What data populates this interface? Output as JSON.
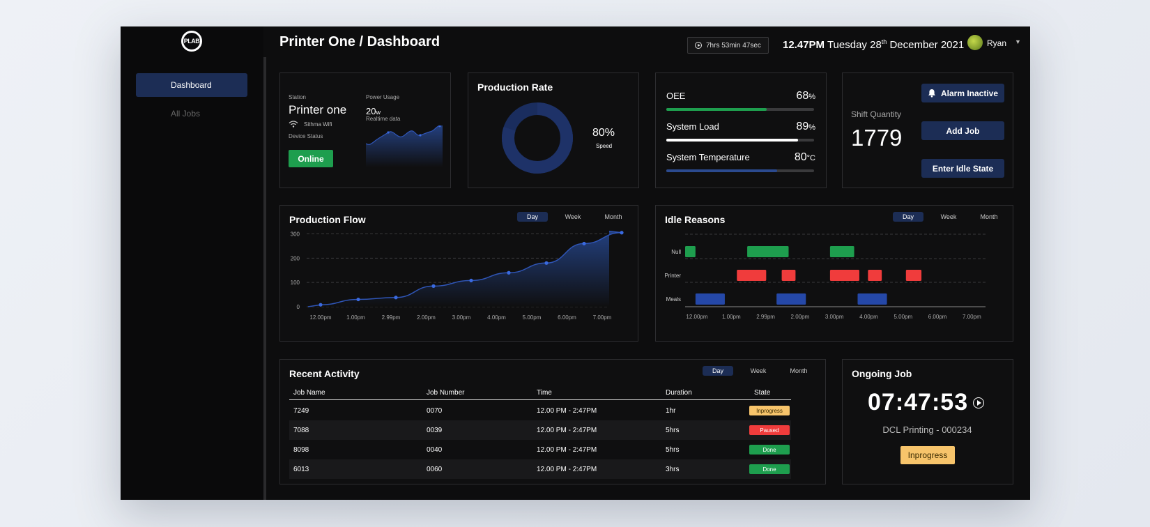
{
  "app": {
    "logo_text": "PLAB",
    "page_title": "Printer One / Dashboard",
    "timer": "7hrs 53min 47sec",
    "time": "12.47PM",
    "date": "Tuesday 28th December 2021",
    "username": "Ryan"
  },
  "sidebar": {
    "items": [
      {
        "label": "Dashboard",
        "icon": "grid-icon"
      },
      {
        "label": "All Jobs",
        "icon": "list-icon"
      }
    ]
  },
  "station": {
    "station_label": "Station",
    "station_name": "Printer one",
    "wifi": "Sithma Wifi",
    "device_status_label": "Device Status",
    "status": "Online",
    "power_label": "Power Usage",
    "power_value": "20",
    "power_unit": "w",
    "realtime": "Realtime data"
  },
  "production_rate": {
    "title": "Production Rate",
    "value": "80%",
    "label": "Speed",
    "fraction": 0.8
  },
  "metrics": [
    {
      "name": "OEE",
      "value": "68",
      "unit": "%",
      "fraction": 0.68,
      "color": "#1e9e4e"
    },
    {
      "name": "System Load",
      "value": "89",
      "unit": "%",
      "fraction": 0.89,
      "color": "#ffffff"
    },
    {
      "name": "System Temperature",
      "value": "80",
      "unit": "°C",
      "fraction": 0.75,
      "color": "#2b4a8f"
    }
  ],
  "shift": {
    "label": "Shift Quantity",
    "value": "1779",
    "alarm": "Alarm Inactive",
    "add_job": "Add Job",
    "idle": "Enter Idle State"
  },
  "range_tabs": [
    "Day",
    "Week",
    "Month"
  ],
  "production_flow": {
    "title": "Production Flow"
  },
  "idle_reasons": {
    "title": "Idle Reasons"
  },
  "chart_data": [
    {
      "type": "area",
      "title": "Production Flow",
      "categories": [
        "12.00pm",
        "1.00pm",
        "2.99pm",
        "2.00pm",
        "3.00pm",
        "4.00pm",
        "5.00pm",
        "6.00pm",
        "7.00pm"
      ],
      "values": [
        8,
        30,
        38,
        85,
        108,
        140,
        180,
        260,
        305
      ],
      "yticks": [
        0,
        100,
        200,
        300
      ],
      "ylim": [
        0,
        310
      ]
    },
    {
      "type": "bar",
      "title": "Idle Reasons",
      "categories": [
        "Null",
        "Printer",
        "Meals"
      ],
      "xticks": [
        "12.00pm",
        "1.00pm",
        "2.99pm",
        "2.00pm",
        "3.00pm",
        "4.00pm",
        "5.00pm",
        "6.00pm",
        "7.00pm"
      ],
      "segments": [
        {
          "category": "Null",
          "start": 0.0,
          "end": 0.3,
          "color": "#1e9e4e"
        },
        {
          "category": "Null",
          "start": 1.8,
          "end": 3.0,
          "color": "#1e9e4e"
        },
        {
          "category": "Null",
          "start": 4.2,
          "end": 4.9,
          "color": "#1e9e4e"
        },
        {
          "category": "Printer",
          "start": 1.5,
          "end": 2.35,
          "color": "#f03c3c"
        },
        {
          "category": "Printer",
          "start": 2.8,
          "end": 3.2,
          "color": "#f03c3c"
        },
        {
          "category": "Printer",
          "start": 4.2,
          "end": 5.05,
          "color": "#f03c3c"
        },
        {
          "category": "Printer",
          "start": 5.3,
          "end": 5.7,
          "color": "#f03c3c"
        },
        {
          "category": "Printer",
          "start": 6.4,
          "end": 6.85,
          "color": "#f03c3c"
        },
        {
          "category": "Meals",
          "start": 0.3,
          "end": 1.15,
          "color": "#2548a8"
        },
        {
          "category": "Meals",
          "start": 2.65,
          "end": 3.5,
          "color": "#2548a8"
        },
        {
          "category": "Meals",
          "start": 5.0,
          "end": 5.85,
          "color": "#2548a8"
        }
      ]
    }
  ],
  "recent_activity": {
    "title": "Recent Activity",
    "columns": [
      "Job Name",
      "Job Number",
      "Time",
      "Duration",
      "State"
    ],
    "rows": [
      {
        "name": "7249",
        "number": "0070",
        "time": "12.00 PM - 2:47PM",
        "duration": "1hr",
        "state": "Inprogress"
      },
      {
        "name": "7088",
        "number": "0039",
        "time": "12.00 PM - 2:47PM",
        "duration": "5hrs",
        "state": "Paused"
      },
      {
        "name": "8098",
        "number": "0040",
        "time": "12.00 PM - 2:47PM",
        "duration": "5hrs",
        "state": "Done"
      },
      {
        "name": "6013",
        "number": "0060",
        "time": "12.00 PM - 2:47PM",
        "duration": "3hrs",
        "state": "Done"
      }
    ]
  },
  "ongoing_job": {
    "title": "Ongoing Job",
    "timer": "07:47:53",
    "job": "DCL Printing - 000234",
    "state": "Inprogress"
  }
}
